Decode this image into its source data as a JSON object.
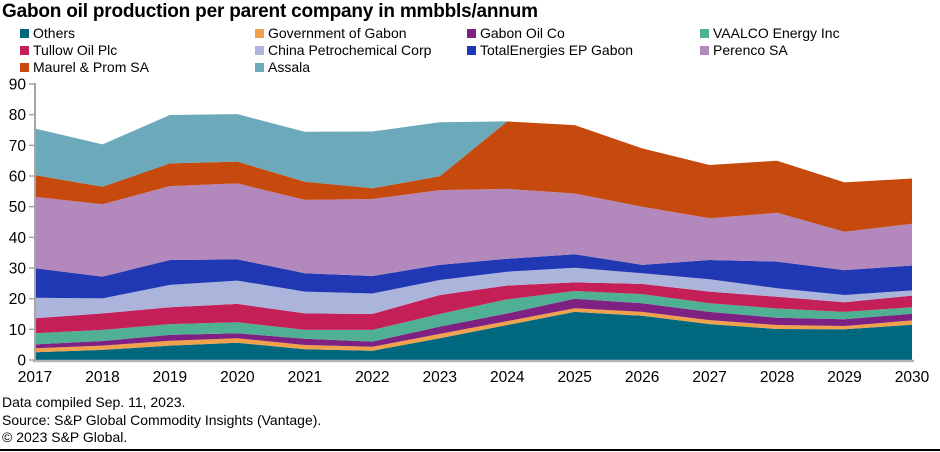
{
  "page": {
    "title": "Gabon oil production per parent company in mmbbls/annum"
  },
  "footer": {
    "line1": "Data compiled Sep. 11, 2023.",
    "line2": "Source: S&P Global Commodity Insights (Vantage).",
    "line3": "© 2023 S&P Global."
  },
  "axis_colors": {
    "y_axis_line": "#A6A6A6",
    "x_base_line": "#B3B3B3",
    "tick": "#A6A6A6",
    "label_text": "#000000"
  },
  "chart_data": {
    "type": "area",
    "stacked": true,
    "title": "Gabon oil production per parent company in mmbbls/annum",
    "unit": "mmbbls/annum",
    "grid": false,
    "legend_position": "top",
    "x": [
      2017,
      2018,
      2019,
      2020,
      2021,
      2022,
      2023,
      2024,
      2025,
      2026,
      2027,
      2028,
      2029,
      2030
    ],
    "ylim": [
      0,
      90
    ],
    "ytick_step": 10,
    "yticks": [
      0,
      10,
      20,
      30,
      40,
      50,
      60,
      70,
      80,
      90
    ],
    "series": [
      {
        "name": "Others",
        "color": "#00687E",
        "values": [
          2.5,
          3.3,
          4.7,
          5.6,
          3.5,
          3.0,
          7.1,
          11.4,
          15.7,
          14.4,
          11.7,
          10.1,
          10.0,
          11.5
        ]
      },
      {
        "name": "Government of Gabon",
        "color": "#F0A14C",
        "values": [
          1.3,
          1.4,
          1.6,
          1.5,
          1.4,
          1.3,
          1.4,
          1.3,
          1.2,
          1.3,
          1.3,
          1.3,
          1.1,
          1.4
        ]
      },
      {
        "name": "Gabon Oil Co",
        "color": "#7F2183",
        "values": [
          1.3,
          1.5,
          1.9,
          1.6,
          2.0,
          1.7,
          2.4,
          2.5,
          3.1,
          2.8,
          2.7,
          2.4,
          2.2,
          2.2
        ]
      },
      {
        "name": "VAALCO Energy Inc",
        "color": "#4FB093",
        "values": [
          3.6,
          3.6,
          3.5,
          3.6,
          2.9,
          3.8,
          4.1,
          4.6,
          2.5,
          3.0,
          2.8,
          3.0,
          2.4,
          2.1
        ]
      },
      {
        "name": "Tullow Oil Plc",
        "color": "#C42057",
        "values": [
          4.9,
          5.4,
          5.5,
          6.0,
          5.4,
          5.2,
          6.2,
          4.5,
          2.8,
          3.3,
          3.8,
          3.8,
          3.1,
          3.8
        ]
      },
      {
        "name": "China Petrochemical Corp",
        "color": "#ABB5DC",
        "values": [
          6.7,
          4.9,
          7.3,
          7.6,
          7.1,
          6.7,
          4.9,
          4.5,
          4.8,
          3.5,
          4.0,
          2.8,
          2.4,
          1.7
        ]
      },
      {
        "name": "TotalEnergies EP Gabon",
        "color": "#2038B4",
        "values": [
          9.6,
          7.1,
          8.1,
          6.9,
          6.0,
          5.7,
          4.9,
          4.2,
          4.4,
          2.7,
          6.3,
          8.7,
          8.1,
          8.1
        ]
      },
      {
        "name": "Perenco SA",
        "color": "#B288BD",
        "values": [
          23.3,
          23.6,
          24.1,
          24.8,
          23.9,
          25.1,
          24.4,
          22.8,
          19.8,
          19.0,
          13.6,
          15.9,
          12.5,
          13.6
        ]
      },
      {
        "name": "Maurel & Prom SA",
        "color": "#C64A0E",
        "values": [
          7.1,
          5.7,
          7.4,
          7.1,
          5.9,
          3.5,
          4.5,
          22.0,
          22.3,
          19.0,
          17.4,
          17.0,
          16.1,
          14.8
        ]
      },
      {
        "name": "Assala",
        "color": "#6CA9BA",
        "values": [
          15.2,
          13.8,
          15.8,
          15.5,
          16.3,
          18.5,
          17.6,
          0,
          0,
          0,
          0,
          0,
          0,
          0
        ]
      }
    ]
  }
}
